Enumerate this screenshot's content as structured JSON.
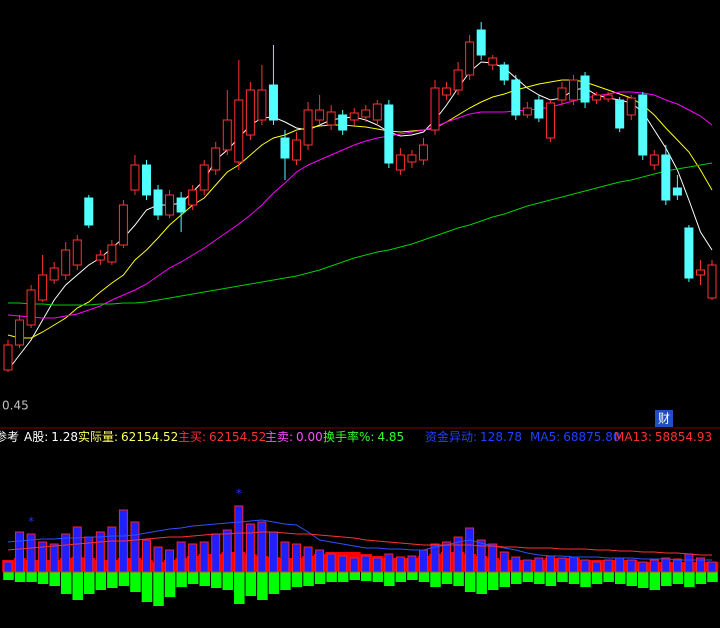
{
  "chart_data": [
    {
      "type": "candlestick",
      "ylim": [
        0,
        400
      ],
      "up_color": "#ff3232",
      "down_color": "#54ffff",
      "price_label": "0.45",
      "open": [
        30,
        55,
        75,
        100,
        120,
        125,
        135,
        202,
        140,
        138,
        155,
        210,
        235,
        210,
        185,
        202,
        195,
        210,
        230,
        250,
        238,
        265,
        280,
        315,
        262,
        240,
        255,
        280,
        275,
        285,
        280,
        283,
        280,
        295,
        230,
        238,
        240,
        270,
        305,
        310,
        325,
        370,
        335,
        335,
        320,
        285,
        300,
        262,
        300,
        300,
        324,
        300,
        301,
        300,
        285,
        305,
        235,
        245,
        212,
        172,
        125,
        102
      ],
      "close": [
        55,
        80,
        110,
        125,
        132,
        150,
        160,
        175,
        145,
        155,
        195,
        235,
        205,
        185,
        205,
        188,
        210,
        235,
        252,
        280,
        300,
        310,
        310,
        280,
        242,
        260,
        290,
        290,
        288,
        270,
        287,
        290,
        296,
        237,
        245,
        245,
        255,
        312,
        312,
        330,
        358,
        345,
        342,
        320,
        285,
        292,
        282,
        297,
        312,
        320,
        298,
        305,
        305,
        272,
        302,
        245,
        245,
        200,
        205,
        122,
        130,
        135
      ],
      "high": [
        60,
        85,
        115,
        145,
        138,
        158,
        165,
        205,
        150,
        160,
        200,
        245,
        240,
        215,
        210,
        208,
        215,
        240,
        258,
        310,
        340,
        318,
        335,
        355,
        270,
        268,
        298,
        305,
        295,
        290,
        292,
        295,
        300,
        300,
        252,
        250,
        262,
        320,
        318,
        338,
        365,
        378,
        345,
        338,
        325,
        298,
        305,
        300,
        318,
        325,
        328,
        308,
        308,
        303,
        305,
        308,
        250,
        255,
        225,
        175,
        140,
        140
      ],
      "low": [
        28,
        52,
        72,
        98,
        116,
        120,
        130,
        172,
        135,
        135,
        152,
        205,
        200,
        180,
        182,
        168,
        190,
        205,
        225,
        245,
        230,
        260,
        275,
        275,
        220,
        235,
        250,
        275,
        270,
        265,
        275,
        278,
        275,
        232,
        225,
        232,
        235,
        265,
        300,
        305,
        320,
        340,
        330,
        315,
        280,
        282,
        278,
        258,
        295,
        295,
        292,
        296,
        298,
        268,
        280,
        240,
        230,
        195,
        200,
        118,
        115,
        100
      ],
      "series": [
        {
          "color": "#ffffff",
          "values": [
            30,
            45,
            60,
            80,
            100,
            115,
            125,
            135,
            142,
            152,
            162,
            175,
            190,
            195,
            195,
            197,
            208,
            220,
            240,
            250,
            262,
            275,
            282,
            283,
            278,
            272,
            270,
            275,
            280,
            282,
            283,
            280,
            275,
            268,
            264,
            265,
            268,
            280,
            295,
            312,
            328,
            338,
            337,
            332,
            322,
            312,
            305,
            300,
            302,
            310,
            312,
            305,
            302,
            300,
            297,
            288,
            270,
            252,
            230,
            200,
            168,
            150
          ]
        },
        {
          "color": "#ffff00",
          "values": [
            65,
            62,
            62,
            68,
            75,
            82,
            92,
            98,
            108,
            117,
            125,
            140,
            150,
            162,
            175,
            185,
            195,
            202,
            215,
            228,
            235,
            245,
            255,
            262,
            265,
            270,
            272,
            274,
            275,
            275,
            274,
            273,
            271,
            269,
            268,
            269,
            270,
            272,
            278,
            285,
            292,
            298,
            303,
            306,
            310,
            313,
            316,
            318,
            320,
            320,
            318,
            314,
            310,
            306,
            302,
            295,
            285,
            272,
            260,
            248,
            230,
            210
          ]
        },
        {
          "color": "#ff00ff",
          "values": [
            85,
            84,
            83,
            82,
            82,
            84,
            86,
            90,
            94,
            100,
            105,
            110,
            116,
            124,
            132,
            138,
            145,
            152,
            160,
            168,
            176,
            185,
            195,
            207,
            217,
            228,
            235,
            240,
            245,
            250,
            255,
            259,
            262,
            264,
            266,
            268,
            270,
            273,
            278,
            282,
            286,
            288,
            288,
            288,
            289,
            290,
            291,
            293,
            296,
            299,
            302,
            304,
            306,
            308,
            308,
            307,
            305,
            300,
            296,
            290,
            284,
            275
          ]
        },
        {
          "color": "#00d000",
          "values": [
            97,
            97,
            96,
            96,
            95,
            95,
            95,
            95,
            96,
            96,
            97,
            97,
            98,
            100,
            102,
            104,
            106,
            108,
            110,
            112,
            114,
            116,
            118,
            120,
            122,
            124,
            127,
            130,
            134,
            138,
            142,
            145,
            148,
            150,
            153,
            156,
            160,
            164,
            168,
            172,
            175,
            179,
            183,
            186,
            190,
            194,
            197,
            200,
            203,
            206,
            209,
            212,
            215,
            218,
            220,
            223,
            226,
            229,
            231,
            233,
            235,
            237
          ]
        }
      ]
    },
    {
      "type": "indicator",
      "ylim": [
        -40,
        72
      ],
      "buy": {
        "color": "#ff0000",
        "values": [
          12,
          14,
          12,
          12,
          12,
          14,
          15,
          14,
          12,
          12,
          14,
          14,
          12,
          10,
          12,
          14,
          16,
          18,
          18,
          20,
          20,
          18,
          16,
          15,
          14,
          14,
          16,
          18,
          20,
          20,
          20,
          18,
          16,
          14,
          14,
          14,
          16,
          18,
          20,
          20,
          18,
          16,
          14,
          12,
          12,
          12,
          12,
          14,
          14,
          14,
          12,
          12,
          12,
          12,
          12,
          10,
          10,
          10,
          10,
          10,
          10,
          10
        ]
      },
      "sell": {
        "color": "#00ff00",
        "values": [
          -8,
          -10,
          -10,
          -12,
          -14,
          -22,
          -28,
          -22,
          -18,
          -16,
          -14,
          -20,
          -30,
          -34,
          -25,
          -15,
          -12,
          -14,
          -16,
          -18,
          -32,
          -24,
          -28,
          -22,
          -18,
          -15,
          -14,
          -12,
          -10,
          -10,
          -8,
          -9,
          -10,
          -14,
          -10,
          -8,
          -10,
          -15,
          -12,
          -14,
          -20,
          -22,
          -18,
          -15,
          -12,
          -10,
          -12,
          -14,
          -10,
          -12,
          -15,
          -12,
          -10,
          -12,
          -14,
          -16,
          -18,
          -14,
          -12,
          -15,
          -12,
          -10
        ]
      },
      "volume": {
        "color": "#2020ff",
        "outline": "#ff2020",
        "values": [
          10,
          40,
          38,
          30,
          28,
          38,
          45,
          35,
          40,
          45,
          62,
          50,
          32,
          25,
          22,
          30,
          28,
          30,
          38,
          42,
          66,
          48,
          50,
          40,
          30,
          28,
          25,
          22,
          18,
          16,
          14,
          16,
          14,
          18,
          15,
          16,
          22,
          28,
          30,
          35,
          44,
          32,
          28,
          20,
          15,
          12,
          14,
          16,
          14,
          15,
          12,
          10,
          12,
          14,
          12,
          10,
          12,
          14,
          13,
          18,
          14,
          10
        ]
      },
      "series": [
        {
          "color": "#3050ff",
          "values": [
            30,
            31,
            32,
            33,
            33,
            34,
            34,
            35,
            35,
            36,
            36,
            37,
            39,
            41,
            43,
            44,
            46,
            47,
            48,
            49,
            50,
            51,
            52,
            50,
            48,
            47,
            40,
            32,
            30,
            28,
            26,
            24,
            24,
            23,
            23,
            22,
            22,
            25,
            27,
            30,
            32,
            29,
            26,
            24,
            22,
            19,
            17,
            16,
            16,
            15,
            15,
            15,
            14,
            14,
            14,
            13,
            13,
            13,
            12,
            12,
            12,
            12
          ]
        },
        {
          "color": "#ff3030",
          "values": [
            22,
            23,
            24,
            25,
            26,
            27,
            28,
            29,
            30,
            31,
            31,
            32,
            33,
            34,
            35,
            35,
            36,
            37,
            38,
            38,
            39,
            39,
            40,
            40,
            39,
            38,
            38,
            37,
            36,
            35,
            34,
            32,
            31,
            30,
            29,
            28,
            27,
            27,
            27,
            27,
            27,
            26,
            26,
            25,
            25,
            24,
            24,
            24,
            23,
            23,
            23,
            22,
            22,
            21,
            21,
            20,
            20,
            19,
            19,
            18,
            17,
            17
          ]
        }
      ],
      "star_symbol": "*",
      "star_color": "#2030ff",
      "star_at": [
        2,
        20
      ]
    }
  ],
  "readouts": [
    {
      "label": "参考",
      "value": "",
      "color": "#ffffff"
    },
    {
      "label": "A股:",
      "value": "1.28",
      "color": "#ffffff"
    },
    {
      "label": "实际量:",
      "value": "62154.52",
      "color": "#ffff60"
    },
    {
      "label": "主买:",
      "value": "62154.52",
      "color": "#ff3030"
    },
    {
      "label": "主卖:",
      "value": "0.00",
      "color": "#ff50ff"
    },
    {
      "label": "换手率%:",
      "value": "4.85",
      "color": "#30ff30"
    },
    {
      "label": "资金异动:",
      "value": "128.78",
      "color": "#2040ff"
    },
    {
      "label": "MA5:",
      "value": "68875.80",
      "color": "#2040ff"
    },
    {
      "label": "MA13:",
      "value": "58854.93",
      "color": "#ff3030"
    }
  ],
  "badge": "财"
}
